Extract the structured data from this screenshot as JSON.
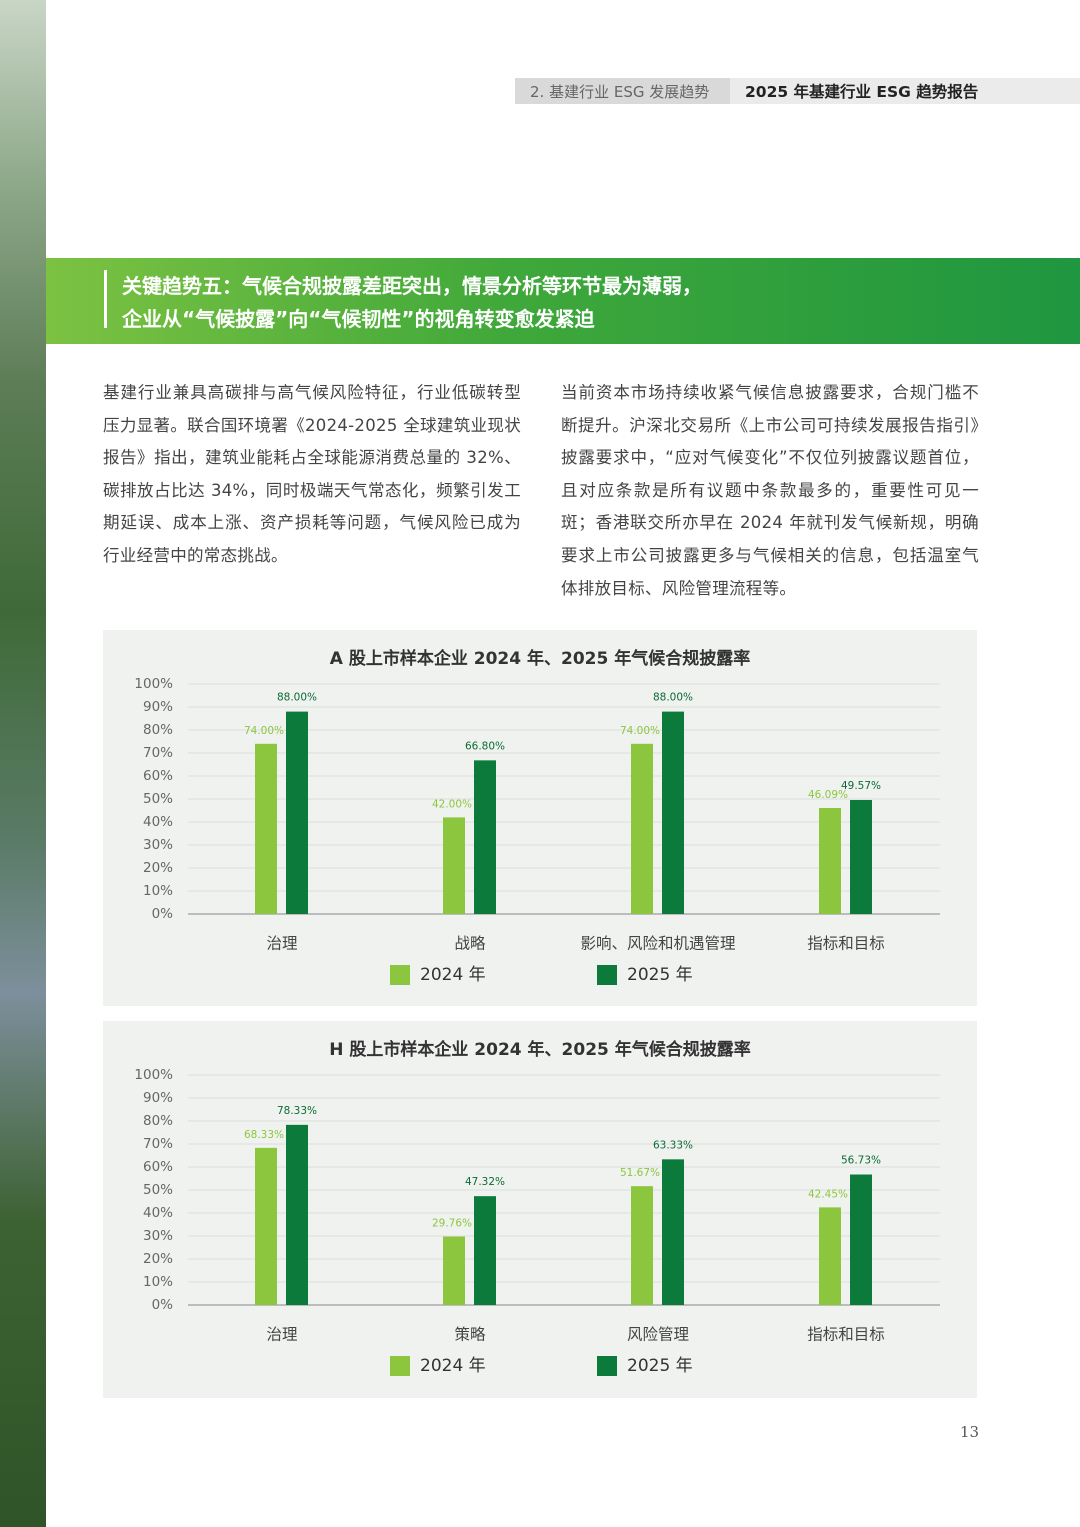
{
  "header": {
    "section": "2. 基建行业 ESG 发展趋势",
    "report": "2025 年基建行业 ESG 趋势报告"
  },
  "banner": {
    "lines": [
      "关键趋势五：气候合规披露差距突出，情景分析等环节最为薄弱，",
      "企业从“气候披露”向“气候韧性”的视角转变愈发紧迫"
    ]
  },
  "paragraphs": [
    "基建行业兼具高碳排与高气候风险特征，行业低碳转型压力显著。联合国环境署《2024-2025 全球建筑业现状报告》指出，建筑业能耗占全球能源消费总量的 32%、碳排放占比达 34%，同时极端天气常态化，频繁引发工期延误、成本上涨、资产损耗等问题，气候风险已成为行业经营中的常态挑战。",
    "当前资本市场持续收紧气候信息披露要求，合规门槛不断提升。沪深北交易所《上市公司可持续发展报告指引》披露要求中，“应对气候变化”不仅位列披露议题首位，且对应条款是所有议题中条款最多的，重要性可见一斑；香港联交所亦早在 2024 年就刊发气候新规，明确要求上市公司披露更多与气候相关的信息，包括温室气体排放目标、风险管理流程等。"
  ],
  "chart_data": [
    {
      "type": "bar",
      "title": "A 股上市样本企业 2024 年、2025 年气候合规披露率",
      "categories": [
        "治理",
        "战略",
        "影响、风险和机遇管理",
        "指标和目标"
      ],
      "series": [
        {
          "name": "2024 年",
          "color": "#8cc63f",
          "values": [
            74,
            42,
            74,
            46.09
          ],
          "value_labels": [
            "74.00%",
            "42.00%",
            "74.00%",
            "46.09%"
          ]
        },
        {
          "name": "2025 年",
          "color": "#0b7a3b",
          "values": [
            88,
            66.8,
            88,
            49.57
          ],
          "value_labels": [
            "88.00%",
            "66.80%",
            "88.00%",
            "49.57%"
          ]
        }
      ],
      "ylim": [
        0,
        100
      ],
      "yticks": [
        {
          "value": 0,
          "label": "0%"
        },
        {
          "value": 10,
          "label": "10%"
        },
        {
          "value": 20,
          "label": "20%"
        },
        {
          "value": 30,
          "label": "30%"
        },
        {
          "value": 40,
          "label": "40%"
        },
        {
          "value": 50,
          "label": "50%"
        },
        {
          "value": 60,
          "label": "60%"
        },
        {
          "value": 70,
          "label": "70%"
        },
        {
          "value": 80,
          "label": "80%"
        },
        {
          "value": 90,
          "label": "90%"
        },
        {
          "value": 100,
          "label": "100%"
        }
      ],
      "grid": true,
      "legend": "bottom"
    },
    {
      "type": "bar",
      "title": "H 股上市样本企业 2024 年、2025 年气候合规披露率",
      "categories": [
        "治理",
        "策略",
        "风险管理",
        "指标和目标"
      ],
      "series": [
        {
          "name": "2024 年",
          "color": "#8cc63f",
          "values": [
            68.33,
            29.76,
            51.67,
            42.45
          ],
          "value_labels": [
            "68.33%",
            "29.76%",
            "51.67%",
            "42.45%"
          ]
        },
        {
          "name": "2025 年",
          "color": "#0b7a3b",
          "values": [
            78.33,
            47.32,
            63.33,
            56.73
          ],
          "value_labels": [
            "78.33%",
            "47.32%",
            "63.33%",
            "56.73%"
          ]
        }
      ],
      "ylim": [
        0,
        100
      ],
      "yticks": [
        {
          "value": 0,
          "label": "0%"
        },
        {
          "value": 10,
          "label": "10%"
        },
        {
          "value": 20,
          "label": "20%"
        },
        {
          "value": 30,
          "label": "30%"
        },
        {
          "value": 40,
          "label": "40%"
        },
        {
          "value": 50,
          "label": "50%"
        },
        {
          "value": 60,
          "label": "60%"
        },
        {
          "value": 70,
          "label": "70%"
        },
        {
          "value": 80,
          "label": "80%"
        },
        {
          "value": 90,
          "label": "90%"
        },
        {
          "value": 100,
          "label": "100%"
        }
      ],
      "grid": true,
      "legend": "bottom"
    }
  ],
  "page_number": "13"
}
